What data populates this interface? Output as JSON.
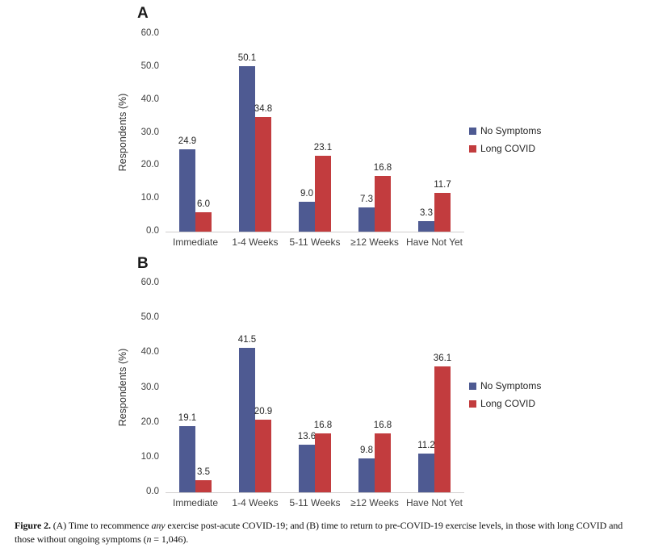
{
  "chart_data": [
    {
      "type": "bar",
      "panel_label": "A",
      "categories": [
        "Immediate",
        "1-4 Weeks",
        "5-11 Weeks",
        "≥12 Weeks",
        "Have Not Yet"
      ],
      "series": [
        {
          "name": "No Symptoms",
          "color": "#4E5A92",
          "values": [
            24.9,
            50.1,
            9.0,
            7.3,
            3.3
          ]
        },
        {
          "name": "Long COVID",
          "color": "#C23C3E",
          "values": [
            6.0,
            34.8,
            23.1,
            16.8,
            11.7
          ]
        }
      ],
      "ylabel": "Respondents (%)",
      "ylim": [
        0,
        60
      ],
      "ytick_step": 10,
      "ytick_labels": [
        "0.0",
        "10.0",
        "20.0",
        "30.0",
        "40.0",
        "50.0",
        "60.0"
      ],
      "grid": false,
      "legend_position": "right",
      "value_labels": true
    },
    {
      "type": "bar",
      "panel_label": "B",
      "categories": [
        "Immediate",
        "1-4 Weeks",
        "5-11 Weeks",
        "≥12 Weeks",
        "Have Not Yet"
      ],
      "series": [
        {
          "name": "No Symptoms",
          "color": "#4E5A92",
          "values": [
            19.1,
            41.5,
            13.6,
            9.8,
            11.2
          ]
        },
        {
          "name": "Long COVID",
          "color": "#C23C3E",
          "values": [
            3.5,
            20.9,
            16.8,
            16.8,
            36.1
          ]
        }
      ],
      "ylabel": "Respondents (%)",
      "ylim": [
        0,
        60
      ],
      "ytick_step": 10,
      "ytick_labels": [
        "0.0",
        "10.0",
        "20.0",
        "30.0",
        "40.0",
        "50.0",
        "60.0"
      ],
      "grid": false,
      "legend_position": "right",
      "value_labels": true
    }
  ],
  "caption": {
    "segments": [
      {
        "text": "Figure 2.",
        "style": "bold"
      },
      {
        "text": " (A) Time to recommence ",
        "style": "normal"
      },
      {
        "text": "any",
        "style": "italic"
      },
      {
        "text": " exercise post-acute COVID-19; and (B) time to return to pre-COVID-19 exercise levels, in those with long COVID and those without ongoing symptoms (",
        "style": "normal"
      },
      {
        "text": "n",
        "style": "italic"
      },
      {
        "text": " = 1,046).",
        "style": "normal"
      }
    ]
  }
}
